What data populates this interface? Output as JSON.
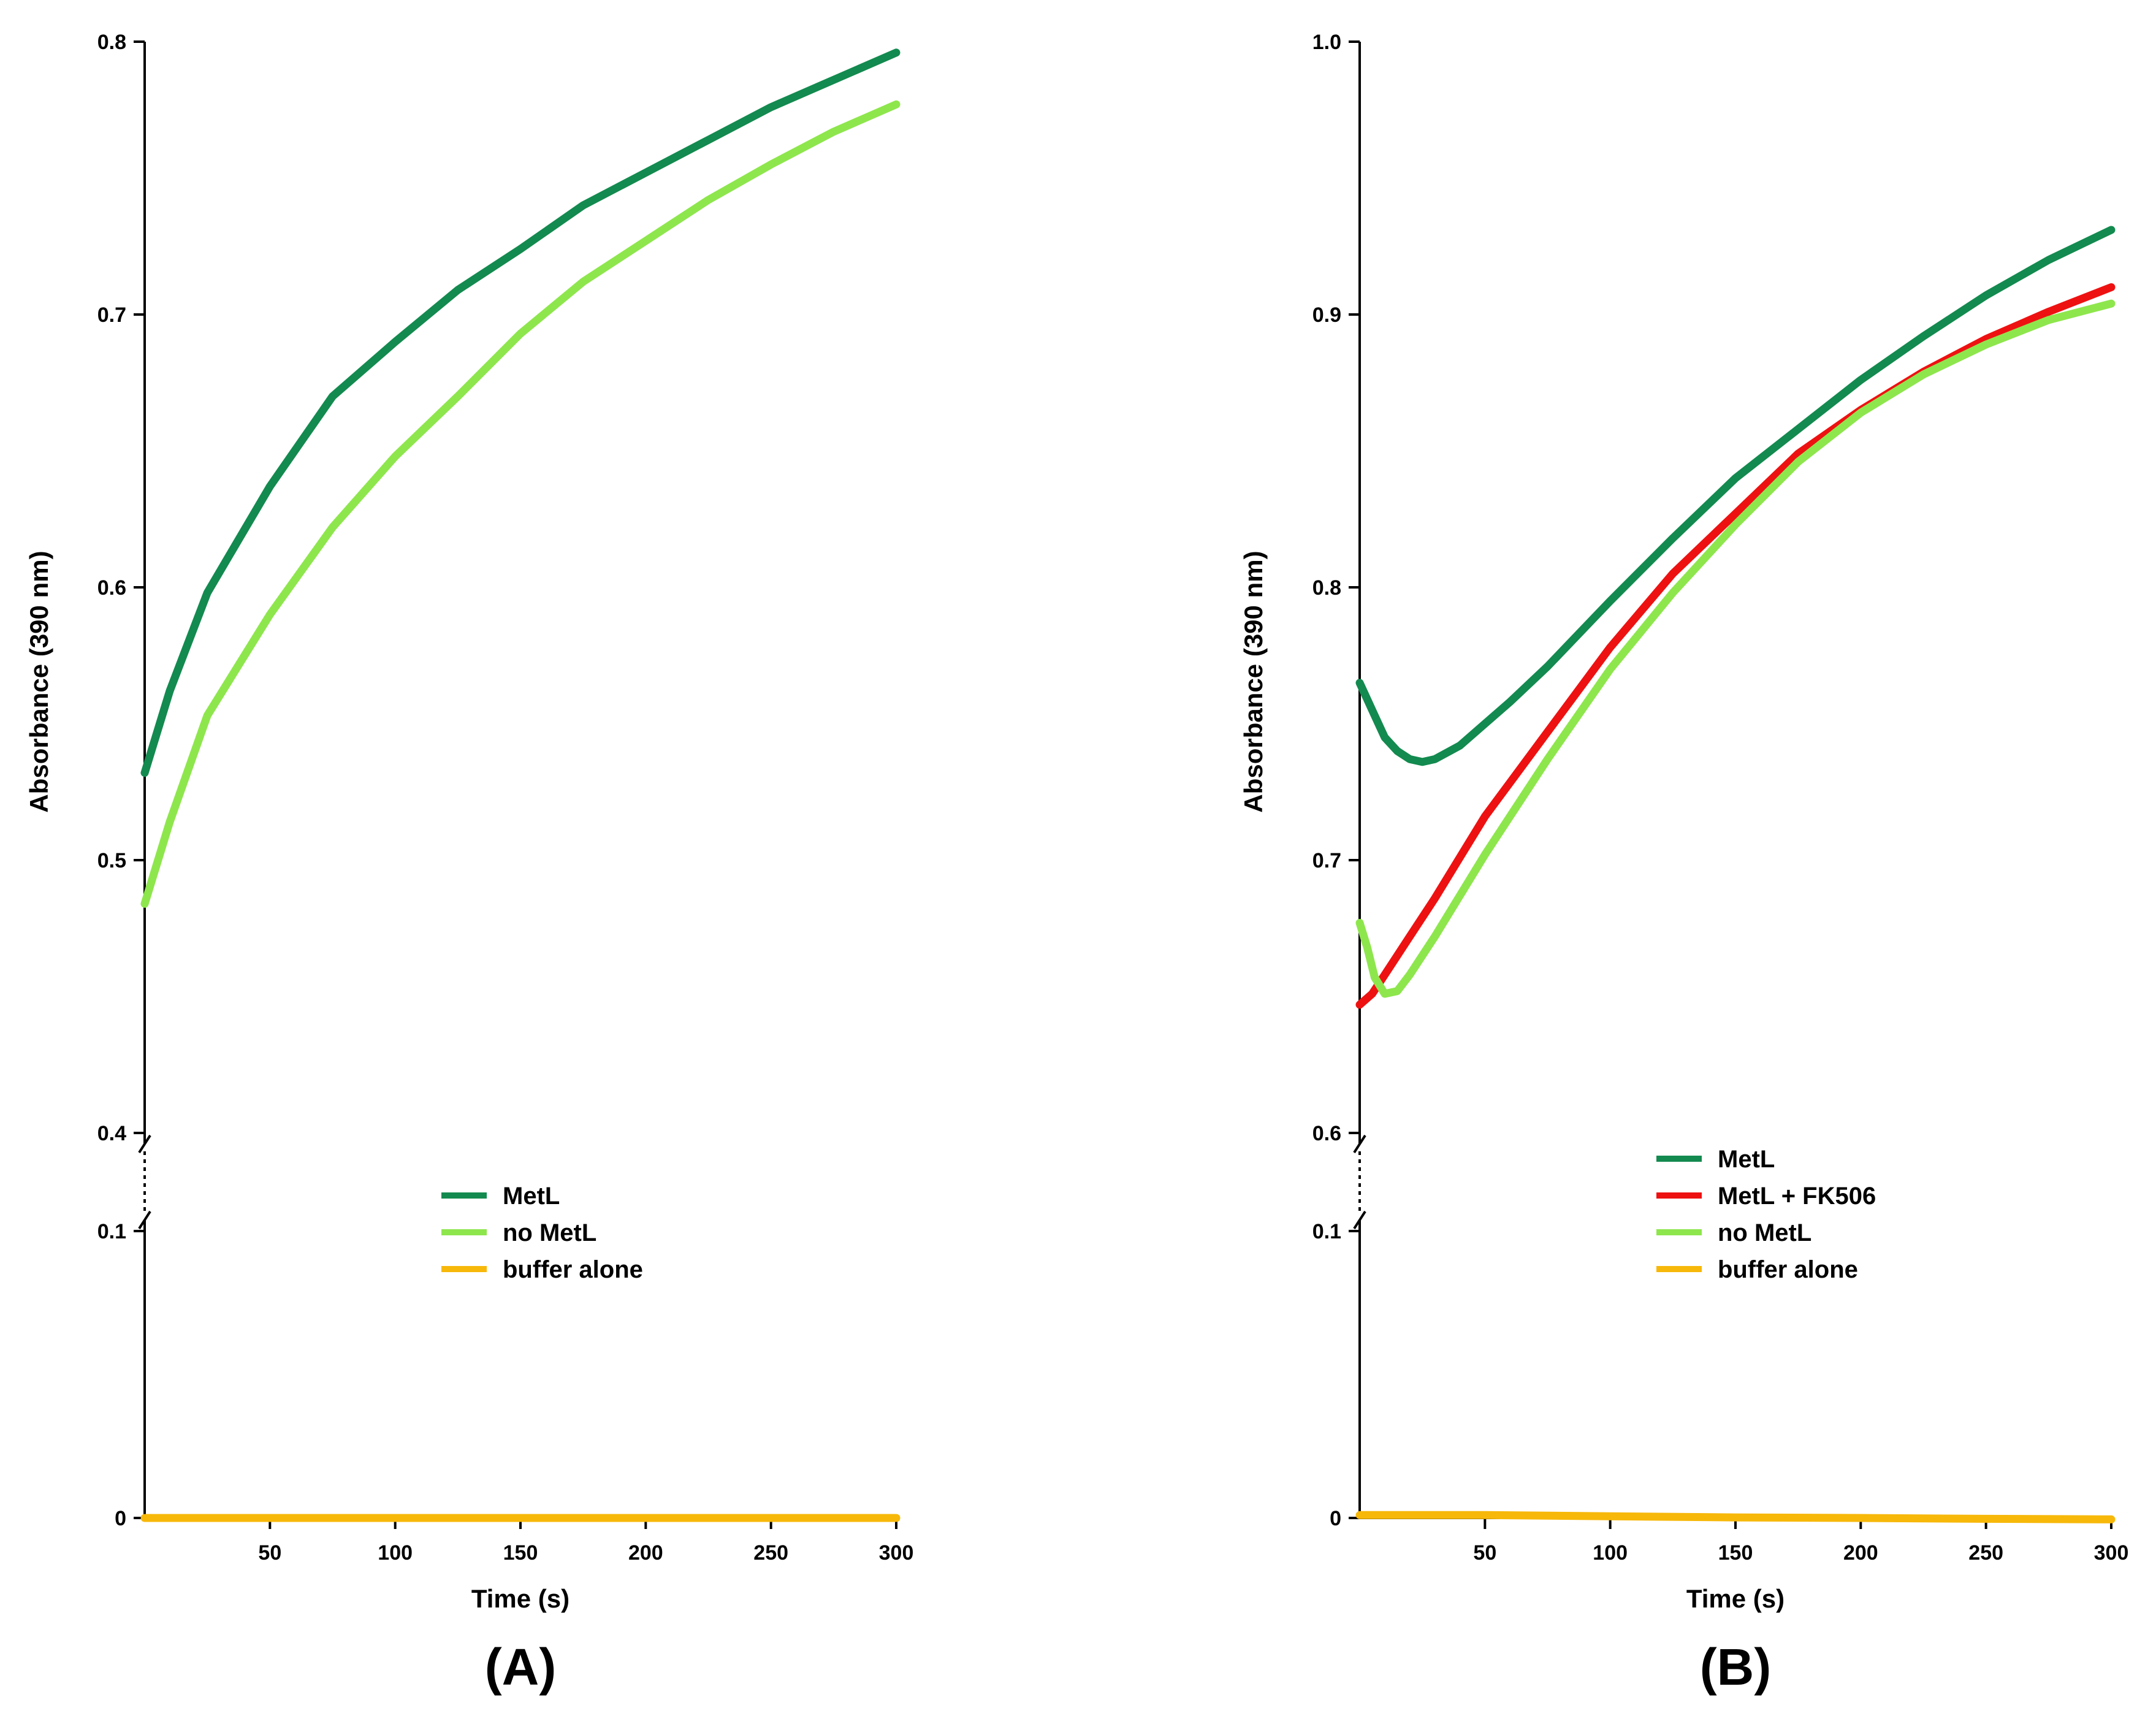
{
  "chart_data": [
    {
      "panel": "(A)",
      "type": "line",
      "xlabel": "Time (s)",
      "ylabel": "Absorbance (390 nm)",
      "xlim": [
        0,
        300
      ],
      "x_ticks": [
        50,
        100,
        150,
        200,
        250,
        300
      ],
      "ylim_upper": [
        0.4,
        0.8
      ],
      "ylim_lower": [
        0,
        0.1
      ],
      "y_ticks_upper": [
        "0.4",
        "0.5",
        "0.6",
        "0.7",
        "0.8"
      ],
      "y_ticks_lower": [
        "0",
        "0.1"
      ],
      "axis_break": true,
      "legend_position": "lower-middle",
      "series": [
        {
          "name": "MetL",
          "color": "#138a4f",
          "x": [
            0,
            10,
            25,
            50,
            75,
            100,
            125,
            150,
            175,
            200,
            225,
            250,
            275,
            300
          ],
          "y": [
            0.532,
            0.562,
            0.598,
            0.637,
            0.67,
            0.69,
            0.709,
            0.724,
            0.74,
            0.752,
            0.764,
            0.776,
            0.786,
            0.796
          ]
        },
        {
          "name": "no MetL",
          "color": "#8ee64d",
          "x": [
            0,
            10,
            25,
            50,
            75,
            100,
            125,
            150,
            175,
            200,
            225,
            250,
            275,
            300
          ],
          "y": [
            0.484,
            0.514,
            0.553,
            0.59,
            0.622,
            0.648,
            0.67,
            0.693,
            0.712,
            0.727,
            0.742,
            0.755,
            0.767,
            0.777
          ]
        },
        {
          "name": "buffer alone",
          "color": "#f7b80a",
          "x": [
            0,
            50,
            100,
            150,
            200,
            250,
            300
          ],
          "y": [
            0,
            0,
            0,
            0,
            0,
            0,
            0
          ]
        }
      ]
    },
    {
      "panel": "(B)",
      "type": "line",
      "xlabel": "Time (s)",
      "ylabel": "Absorbance (390 nm)",
      "xlim": [
        0,
        300
      ],
      "x_ticks": [
        50,
        100,
        150,
        200,
        250,
        300
      ],
      "ylim_upper": [
        0.6,
        1.0
      ],
      "ylim_lower": [
        0,
        0.1
      ],
      "y_ticks_upper": [
        "0.6",
        "0.7",
        "0.8",
        "0.9",
        "1.0"
      ],
      "y_ticks_lower": [
        "0",
        "0.1"
      ],
      "axis_break": true,
      "legend_position": "lower-middle",
      "series": [
        {
          "name": "MetL",
          "color": "#138a4f",
          "x": [
            0,
            5,
            10,
            15,
            20,
            25,
            30,
            40,
            50,
            60,
            75,
            100,
            125,
            150,
            175,
            200,
            225,
            250,
            275,
            300
          ],
          "y": [
            0.765,
            0.755,
            0.745,
            0.74,
            0.737,
            0.736,
            0.737,
            0.742,
            0.75,
            0.758,
            0.771,
            0.795,
            0.818,
            0.84,
            0.858,
            0.876,
            0.892,
            0.907,
            0.92,
            0.931
          ]
        },
        {
          "name": "MetL + FK506",
          "color": "#ee1111",
          "x": [
            0,
            5,
            10,
            20,
            30,
            50,
            75,
            100,
            125,
            150,
            175,
            200,
            225,
            250,
            275,
            300
          ],
          "y": [
            0.647,
            0.651,
            0.658,
            0.672,
            0.686,
            0.716,
            0.747,
            0.778,
            0.805,
            0.827,
            0.849,
            0.865,
            0.879,
            0.891,
            0.901,
            0.91
          ]
        },
        {
          "name": "no MetL",
          "color": "#8ee64d",
          "x": [
            0,
            3,
            6,
            10,
            15,
            20,
            30,
            50,
            75,
            100,
            125,
            150,
            175,
            200,
            225,
            250,
            275,
            300
          ],
          "y": [
            0.677,
            0.668,
            0.657,
            0.651,
            0.652,
            0.658,
            0.672,
            0.702,
            0.737,
            0.77,
            0.798,
            0.823,
            0.846,
            0.864,
            0.878,
            0.889,
            0.898,
            0.904
          ]
        },
        {
          "name": "buffer alone",
          "color": "#f7b80a",
          "x": [
            0,
            50,
            100,
            150,
            200,
            250,
            300
          ],
          "y": [
            0.001,
            0.001,
            0.0006,
            0.0002,
            0,
            -0.0003,
            -0.0005
          ]
        }
      ]
    }
  ]
}
